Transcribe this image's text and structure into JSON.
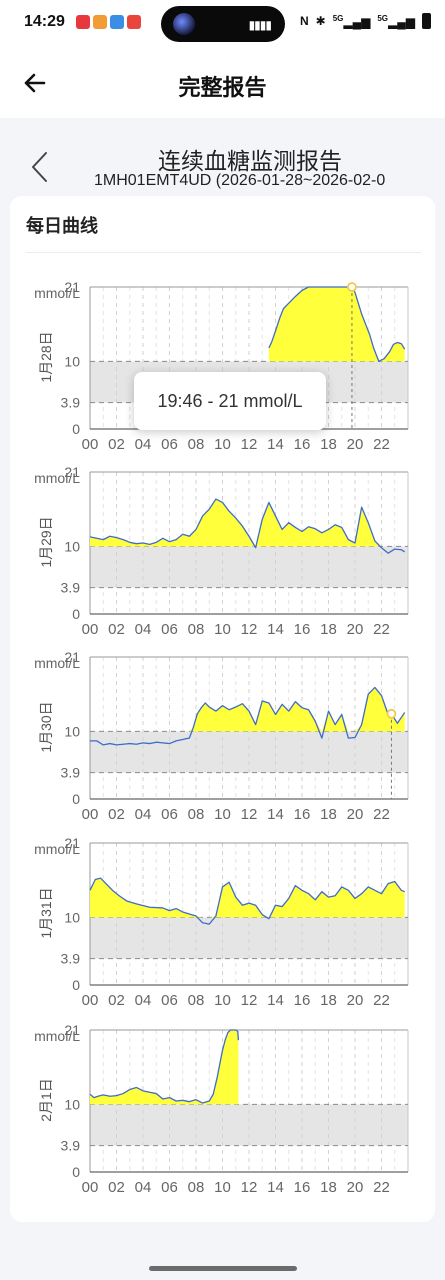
{
  "status_bar": {
    "time": "14:29",
    "network_1": "5G",
    "network_2": "5G"
  },
  "header": {
    "title": "完整报告"
  },
  "report": {
    "title": "连续血糖监测报告",
    "subtitle": "1MH01EMT4UD (2026-01-28~2026-02-0",
    "section_title": "每日曲线"
  },
  "tooltip": {
    "text": "19:46 - 21 mmol/L"
  },
  "colors": {
    "fill": "#ffff3c",
    "line": "#3f6bc9",
    "band": "#e5e5e5",
    "accent": "#f2c94c"
  },
  "chart_data": [
    {
      "type": "area",
      "day_label": "1月28日",
      "unit": "mmol/L",
      "y_ticks": [
        0,
        3.9,
        10,
        21
      ],
      "ylim": [
        0,
        21
      ],
      "target_low": 3.9,
      "target_high": 10,
      "x_ticks": [
        "00",
        "02",
        "04",
        "06",
        "08",
        "10",
        "12",
        "14",
        "16",
        "18",
        "20",
        "22"
      ],
      "xlim": [
        0,
        24
      ],
      "x": [
        13.5,
        13.7,
        14.0,
        14.3,
        14.6,
        15.0,
        15.5,
        16.0,
        16.5,
        17.0,
        17.5,
        18.0,
        18.5,
        19.0,
        19.77,
        20.0,
        20.5,
        20.8,
        21.1,
        21.4,
        21.8,
        22.2,
        22.6,
        22.9,
        23.2,
        23.5,
        23.75
      ],
      "y": [
        12.0,
        12.8,
        14.5,
        16.3,
        17.8,
        18.6,
        19.6,
        20.5,
        21,
        21,
        21,
        21,
        21,
        21,
        21,
        20.2,
        17.0,
        15.5,
        14.0,
        12.0,
        10.0,
        10.4,
        11.4,
        12.5,
        12.8,
        12.6,
        11.8
      ],
      "marker": {
        "x": 19.77,
        "y": 21
      }
    },
    {
      "type": "area",
      "day_label": "1月29日",
      "unit": "mmol/L",
      "y_ticks": [
        0,
        3.9,
        10,
        21
      ],
      "ylim": [
        0,
        21
      ],
      "target_low": 3.9,
      "target_high": 10,
      "x_ticks": [
        "00",
        "02",
        "04",
        "06",
        "08",
        "10",
        "12",
        "14",
        "16",
        "18",
        "20",
        "22"
      ],
      "xlim": [
        0,
        24
      ],
      "x": [
        0,
        0.5,
        1.0,
        1.5,
        2.0,
        2.5,
        3.0,
        3.5,
        4.0,
        4.5,
        5.0,
        5.5,
        6.0,
        6.5,
        7.0,
        7.5,
        8.0,
        8.5,
        9.0,
        9.5,
        10.0,
        10.5,
        11.0,
        11.5,
        12.0,
        12.5,
        13.0,
        13.5,
        14.0,
        14.5,
        15.0,
        15.5,
        16.0,
        16.5,
        17.0,
        17.5,
        18.0,
        18.5,
        19.0,
        19.5,
        20.0,
        20.5,
        21.0,
        21.5,
        22.0,
        22.5,
        23.0,
        23.5,
        23.75
      ],
      "y": [
        11.4,
        11.2,
        11.0,
        11.5,
        11.3,
        11.0,
        10.6,
        10.4,
        10.5,
        10.3,
        10.6,
        11.2,
        10.7,
        11.0,
        11.8,
        11.5,
        12.5,
        14.5,
        15.5,
        17.0,
        16.5,
        15.2,
        14.2,
        13.0,
        11.5,
        9.8,
        14.0,
        16.5,
        14.5,
        12.5,
        13.5,
        12.8,
        12.2,
        12.9,
        12.6,
        12.0,
        12.5,
        13.2,
        12.8,
        11.0,
        10.5,
        15.8,
        13.5,
        10.8,
        9.8,
        9.0,
        9.6,
        9.5,
        9.2
      ]
    },
    {
      "type": "area",
      "day_label": "1月30日",
      "unit": "mmol/L",
      "y_ticks": [
        0,
        3.9,
        10,
        21
      ],
      "ylim": [
        0,
        21
      ],
      "target_low": 3.9,
      "target_high": 10,
      "x_ticks": [
        "00",
        "02",
        "04",
        "06",
        "08",
        "10",
        "12",
        "14",
        "16",
        "18",
        "20",
        "22"
      ],
      "xlim": [
        0,
        24
      ],
      "x": [
        0,
        0.5,
        1.0,
        1.5,
        2.0,
        2.5,
        3.0,
        3.5,
        4.0,
        4.5,
        5.0,
        5.5,
        6.0,
        6.5,
        7.0,
        7.2,
        7.5,
        7.8,
        8.1,
        8.4,
        8.7,
        9.0,
        9.5,
        10.0,
        10.5,
        11.0,
        11.5,
        12.0,
        12.5,
        13.0,
        13.5,
        14.0,
        14.5,
        15.0,
        15.5,
        16.0,
        16.5,
        17.0,
        17.5,
        18.0,
        18.5,
        19.0,
        19.5,
        20.0,
        20.5,
        21.0,
        21.5,
        22.0,
        22.5,
        22.75,
        23.2,
        23.75
      ],
      "y": [
        8.6,
        8.6,
        8.0,
        8.2,
        8.0,
        8.1,
        8.2,
        8.1,
        8.3,
        8.2,
        8.4,
        8.3,
        8.2,
        8.6,
        8.8,
        8.9,
        9.0,
        10.6,
        12.6,
        13.5,
        14.2,
        13.6,
        13.0,
        13.8,
        13.2,
        13.6,
        14.1,
        13.0,
        11.0,
        14.5,
        14.2,
        12.5,
        14.0,
        13.0,
        14.4,
        13.5,
        13.2,
        11.5,
        9.0,
        13.0,
        11.0,
        12.5,
        9.0,
        9.1,
        11.0,
        15.5,
        16.5,
        15.3,
        12.5,
        12.6,
        11.2,
        12.8
      ],
      "marker": {
        "x": 22.75,
        "y": 12.6
      }
    },
    {
      "type": "area",
      "day_label": "1月31日",
      "unit": "mmol/L",
      "y_ticks": [
        0,
        3.9,
        10,
        21
      ],
      "ylim": [
        0,
        21
      ],
      "target_low": 3.9,
      "target_high": 10,
      "x_ticks": [
        "00",
        "02",
        "04",
        "06",
        "08",
        "10",
        "12",
        "14",
        "16",
        "18",
        "20",
        "22"
      ],
      "xlim": [
        0,
        24
      ],
      "x": [
        0,
        0.4,
        0.8,
        1.2,
        1.7,
        2.2,
        2.8,
        3.5,
        4.5,
        5.5,
        6.0,
        6.5,
        7.0,
        7.5,
        8.0,
        8.5,
        9.0,
        9.5,
        10.0,
        10.5,
        11.0,
        11.5,
        12.0,
        12.5,
        13.0,
        13.5,
        14.0,
        14.5,
        15.0,
        15.5,
        16.0,
        16.5,
        17.0,
        17.5,
        18.0,
        18.5,
        19.0,
        19.5,
        20.0,
        20.5,
        21.0,
        21.5,
        22.0,
        22.5,
        23.0,
        23.5,
        23.75
      ],
      "y": [
        14.0,
        15.6,
        15.8,
        15.0,
        14.0,
        13.2,
        12.4,
        12.0,
        11.5,
        11.4,
        11.0,
        11.3,
        10.8,
        10.5,
        10.2,
        9.2,
        9.0,
        10.2,
        14.5,
        15.2,
        13.0,
        11.8,
        12.1,
        11.8,
        10.4,
        9.8,
        11.8,
        11.6,
        12.8,
        14.7,
        14.0,
        13.5,
        12.6,
        13.8,
        13.0,
        13.2,
        14.5,
        14.0,
        12.8,
        13.5,
        14.5,
        14.0,
        13.5,
        15.0,
        15.3,
        14.0,
        13.8
      ]
    },
    {
      "type": "area",
      "day_label": "2月1日",
      "unit": "mmol/L",
      "y_ticks": [
        0,
        3.9,
        10,
        21
      ],
      "ylim": [
        0,
        21
      ],
      "target_low": 3.9,
      "target_high": 10,
      "x_ticks": [
        "00",
        "02",
        "04",
        "06",
        "08",
        "10",
        "12",
        "14",
        "16",
        "18",
        "20",
        "22"
      ],
      "xlim": [
        0,
        24
      ],
      "x": [
        0,
        0.3,
        0.6,
        1.0,
        1.5,
        2.0,
        2.5,
        3.0,
        3.5,
        4.0,
        4.5,
        5.0,
        5.5,
        6.0,
        6.5,
        7.0,
        7.5,
        8.0,
        8.5,
        9.0,
        9.3,
        9.6,
        9.8,
        10.0,
        10.2,
        10.4,
        10.6,
        10.8,
        11.0,
        11.15,
        11.2
      ],
      "y": [
        11.5,
        11.0,
        11.2,
        11.4,
        11.2,
        11.3,
        11.6,
        12.2,
        12.5,
        12.0,
        11.8,
        11.6,
        10.8,
        11.0,
        10.5,
        10.6,
        10.4,
        10.7,
        10.2,
        10.5,
        11.5,
        14.0,
        16.0,
        18.0,
        19.5,
        20.6,
        21,
        21,
        21,
        20.8,
        19.5
      ]
    }
  ]
}
